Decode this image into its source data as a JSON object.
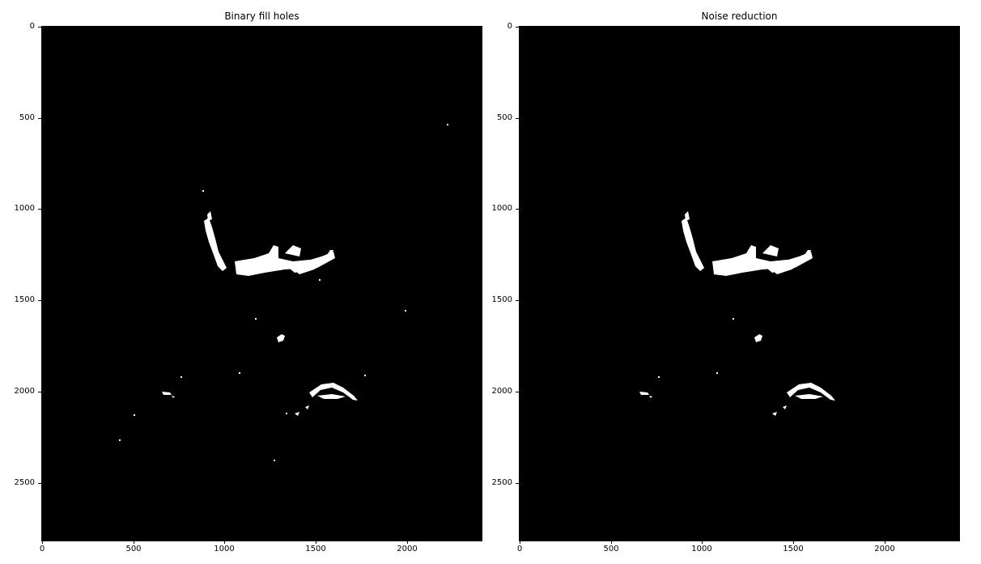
{
  "panels": [
    {
      "title": "Binary fill holes",
      "yticks": [
        "0",
        "500",
        "1000",
        "1500",
        "2000",
        "2500"
      ],
      "xticks": [
        "0",
        "500",
        "1000",
        "1500",
        "2000"
      ]
    },
    {
      "title": "Noise reduction",
      "yticks": [
        "0",
        "500",
        "1000",
        "1500",
        "2000",
        "2500"
      ],
      "xticks": [
        "0",
        "500",
        "1000",
        "1500",
        "2000"
      ]
    }
  ],
  "colors": {
    "background": "#000000",
    "foreground": "#ffffff"
  }
}
